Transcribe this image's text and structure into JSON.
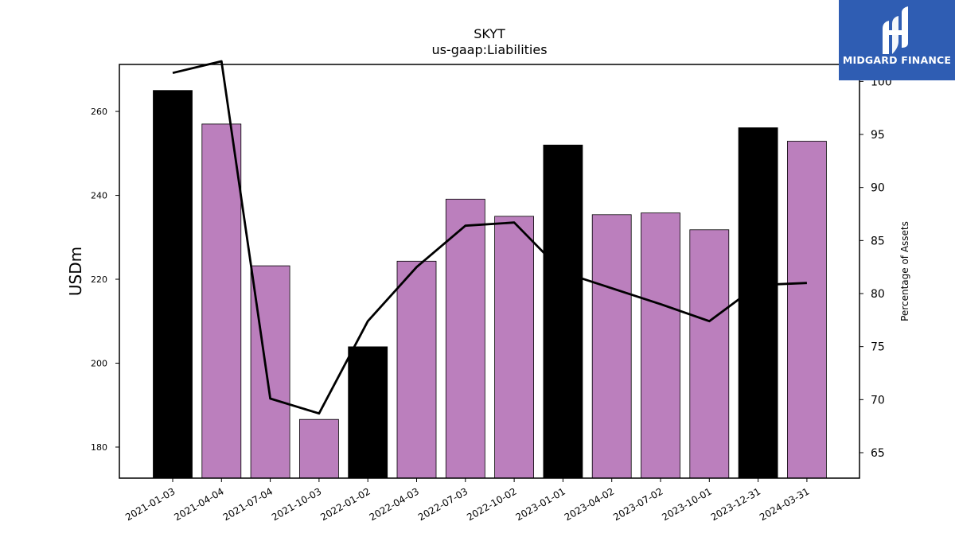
{
  "chart_data": {
    "type": "bar",
    "title": "SKYT",
    "subtitle": "us-gaap:Liabilities",
    "ylabel": "USDm",
    "y2label": "Percentage of Assets",
    "categories": [
      "2021-01-03",
      "2021-04-04",
      "2021-07-04",
      "2021-10-03",
      "2022-01-02",
      "2022-04-03",
      "2022-07-03",
      "2022-10-02",
      "2023-01-01",
      "2023-04-02",
      "2023-07-02",
      "2023-10-01",
      "2023-12-31",
      "2024-03-31"
    ],
    "series": [
      {
        "type": "bar",
        "axis": "left",
        "values": [
          265,
          257,
          223.2,
          186.6,
          203.9,
          224.3,
          239.1,
          235,
          252,
          235.4,
          235.8,
          231.8,
          256.1,
          252.9
        ],
        "colors": [
          "#000000",
          "#bb7fbd",
          "#bb7fbd",
          "#bb7fbd",
          "#000000",
          "#bb7fbd",
          "#bb7fbd",
          "#bb7fbd",
          "#000000",
          "#bb7fbd",
          "#bb7fbd",
          "#bb7fbd",
          "#000000",
          "#bb7fbd"
        ]
      },
      {
        "type": "line",
        "axis": "right",
        "color": "#000000",
        "values": [
          100.8,
          101.9,
          70.1,
          68.7,
          77.4,
          82.5,
          86.4,
          86.7,
          82,
          80.5,
          79,
          77.4,
          80.8,
          81
        ]
      }
    ],
    "ylim": [
      172.6,
      271.2
    ],
    "y2lim": [
      62.6,
      101.6
    ],
    "yticks": [
      180,
      200,
      220,
      240,
      260
    ],
    "y2ticks": [
      65,
      70,
      75,
      80,
      85,
      90,
      95,
      100
    ],
    "grid": false,
    "legend": "none"
  },
  "logo": {
    "text": "MIDGARD FINANCE",
    "icon": "midgard-logo-icon"
  }
}
